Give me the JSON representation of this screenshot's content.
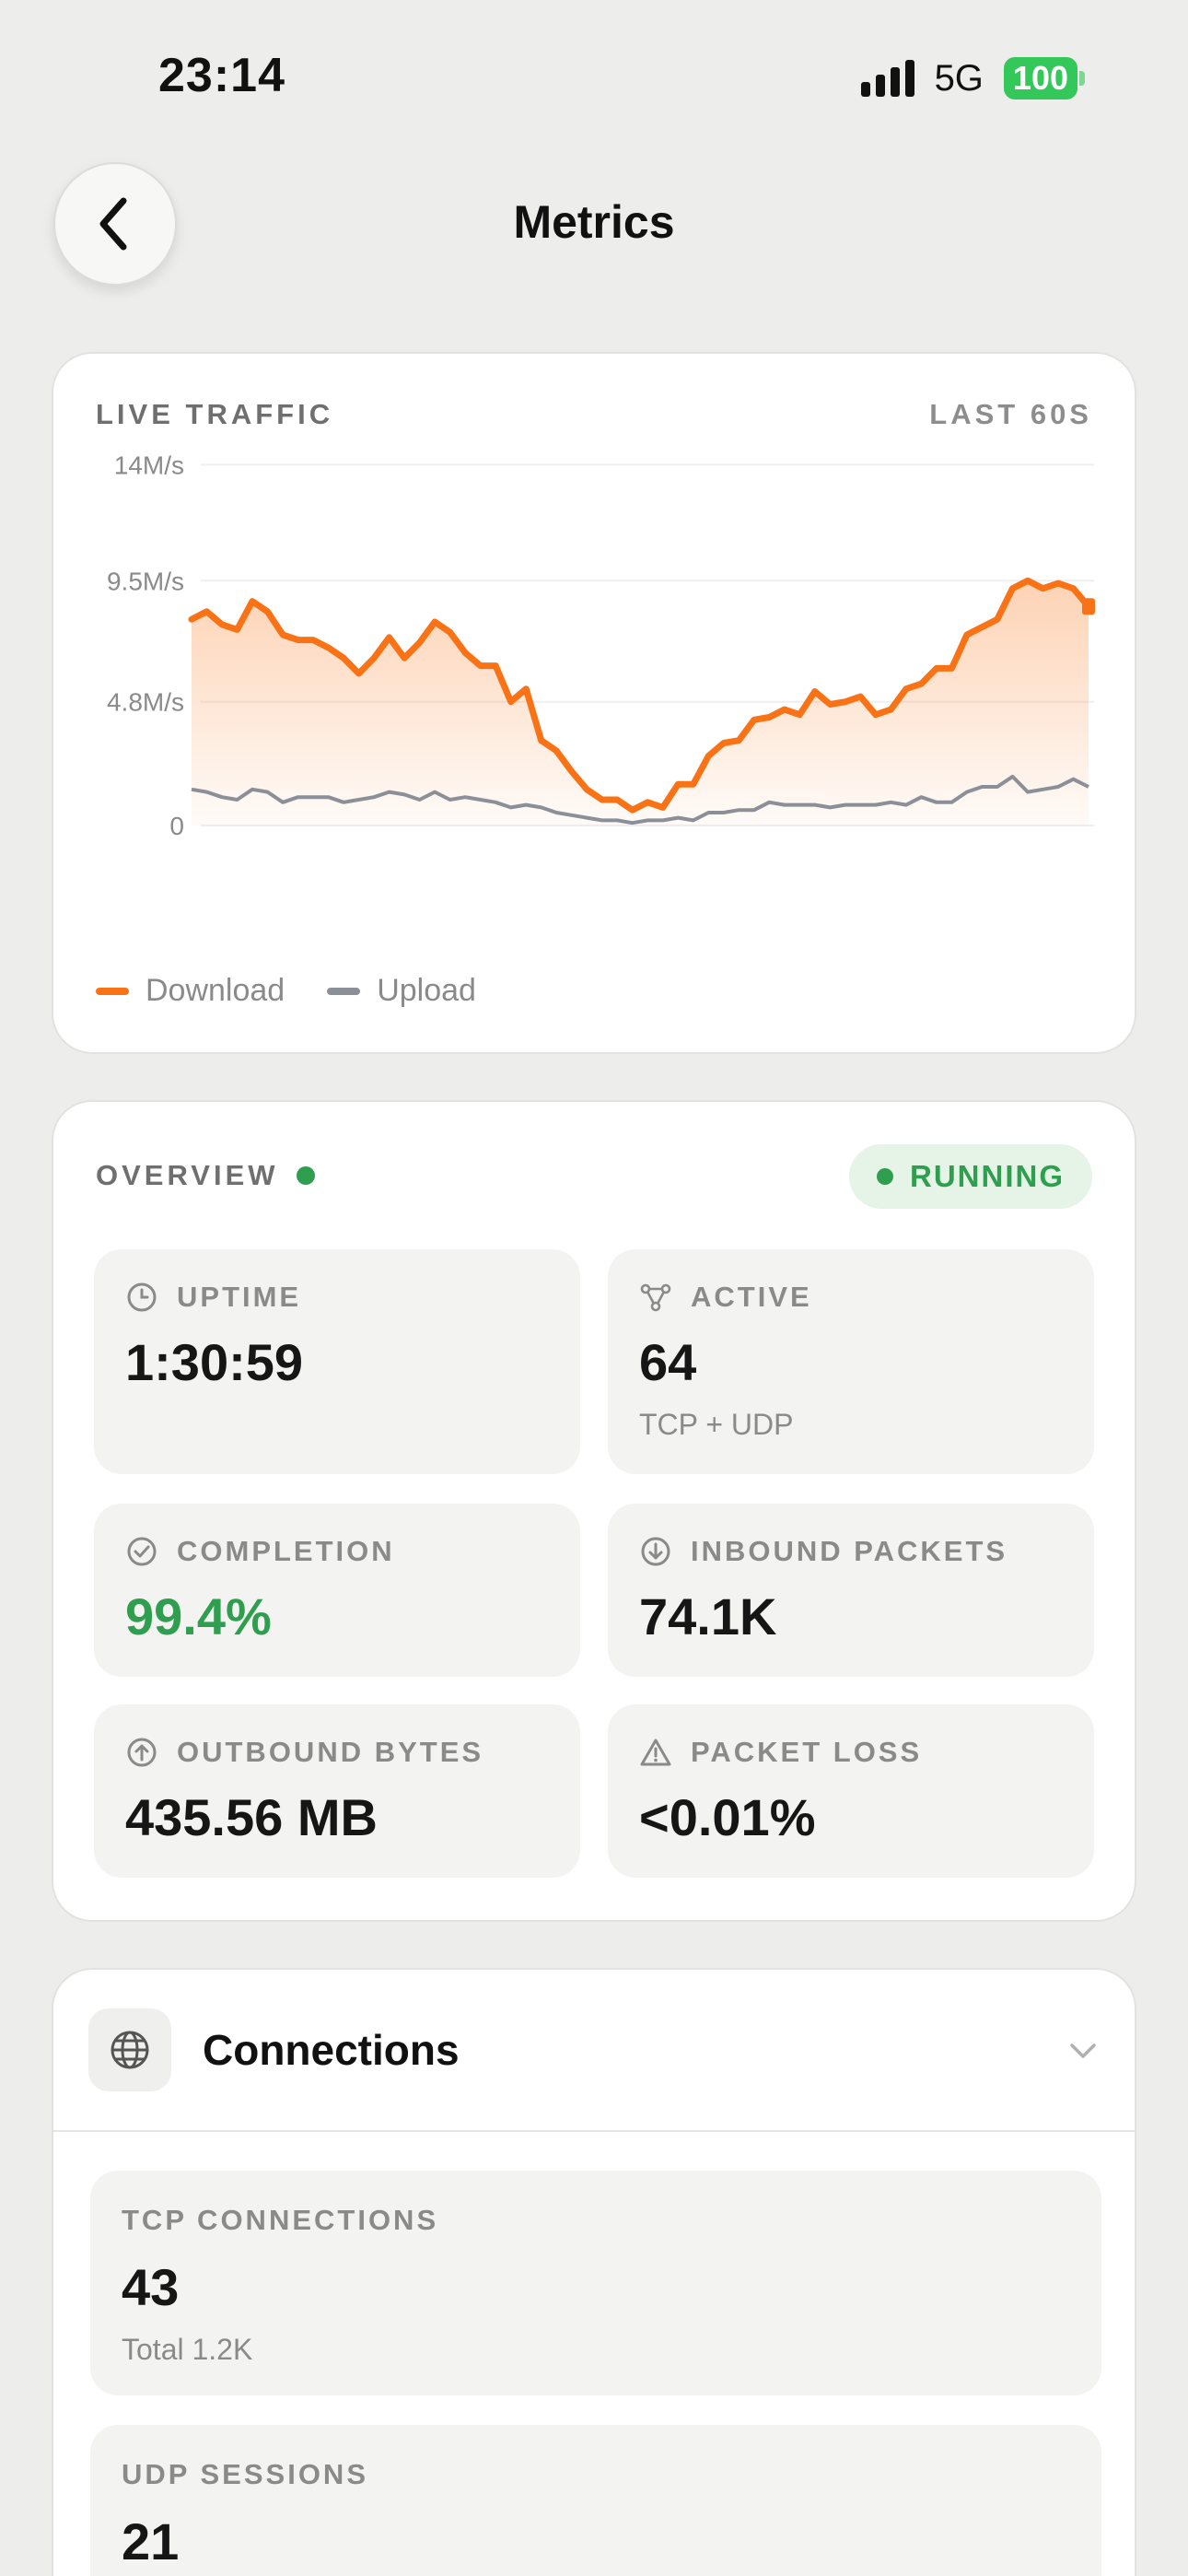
{
  "status_bar": {
    "time": "23:14",
    "network": "5G",
    "battery": "100"
  },
  "nav": {
    "title": "Metrics",
    "back_icon": "chevron-left-icon"
  },
  "traffic": {
    "label": "LIVE TRAFFIC",
    "range": "LAST 60S",
    "legend": {
      "download": "Download",
      "upload": "Upload"
    },
    "colors": {
      "download": "#f97316",
      "upload": "#8b8f98"
    },
    "chart_data": {
      "type": "line",
      "yticks": [
        "14M/s",
        "9.5M/s",
        "4.8M/s",
        "0"
      ],
      "ylim": [
        0,
        14.3
      ],
      "x": [
        0,
        1,
        2,
        3,
        4,
        5,
        6,
        7,
        8,
        9,
        10,
        11,
        12,
        13,
        14,
        15,
        16,
        17,
        18,
        19,
        20,
        21,
        22,
        23,
        24,
        25,
        26,
        27,
        28,
        29,
        30,
        31,
        32,
        33,
        34,
        35,
        36,
        37,
        38,
        39,
        40,
        41,
        42,
        43,
        44,
        45,
        46,
        47,
        48,
        49,
        50,
        51,
        52,
        53,
        54,
        55,
        56,
        57,
        58,
        59
      ],
      "series": [
        {
          "name": "Download",
          "values": [
            8.0,
            8.3,
            7.8,
            7.6,
            8.7,
            8.3,
            7.4,
            7.2,
            7.2,
            6.9,
            6.5,
            5.9,
            6.5,
            7.3,
            6.5,
            7.1,
            7.9,
            7.5,
            6.7,
            6.2,
            6.2,
            4.8,
            5.3,
            3.3,
            2.9,
            2.1,
            1.4,
            1.0,
            1.0,
            0.6,
            0.9,
            0.7,
            1.6,
            1.6,
            2.7,
            3.2,
            3.3,
            4.1,
            4.2,
            4.5,
            4.3,
            5.2,
            4.7,
            4.8,
            5.0,
            4.3,
            4.5,
            5.3,
            5.5,
            6.1,
            6.1,
            7.4,
            7.7,
            8.0,
            9.2,
            9.5,
            9.2,
            9.4,
            9.2,
            8.5
          ]
        },
        {
          "name": "Upload",
          "values": [
            1.4,
            1.3,
            1.1,
            1.0,
            1.4,
            1.3,
            0.9,
            1.1,
            1.1,
            1.1,
            0.9,
            1.0,
            1.1,
            1.3,
            1.2,
            1.0,
            1.3,
            1.0,
            1.1,
            1.0,
            0.9,
            0.7,
            0.8,
            0.7,
            0.5,
            0.4,
            0.3,
            0.2,
            0.2,
            0.1,
            0.2,
            0.2,
            0.3,
            0.2,
            0.5,
            0.5,
            0.6,
            0.6,
            0.9,
            0.8,
            0.8,
            0.8,
            0.7,
            0.8,
            0.8,
            0.8,
            0.9,
            0.8,
            1.1,
            0.9,
            0.9,
            1.3,
            1.5,
            1.5,
            1.9,
            1.3,
            1.4,
            1.5,
            1.8,
            1.5
          ]
        }
      ]
    }
  },
  "overview": {
    "label": "OVERVIEW",
    "status": "RUNNING",
    "status_color": "#2f9e4f",
    "tiles": [
      {
        "label": "UPTIME",
        "value": "1:30:59",
        "sub": "",
        "icon": "clock-icon",
        "accent": ""
      },
      {
        "label": "ACTIVE",
        "value": "64",
        "sub": "TCP + UDP",
        "icon": "network-nodes-icon",
        "accent": ""
      },
      {
        "label": "COMPLETION",
        "value": "99.4%",
        "sub": "",
        "icon": "check-circle-icon",
        "accent": "#2f9e4f"
      },
      {
        "label": "INBOUND PACKETS",
        "value": "74.1K",
        "sub": "",
        "icon": "arrow-down-circle-icon",
        "accent": ""
      },
      {
        "label": "OUTBOUND BYTES",
        "value": "435.56 MB",
        "sub": "",
        "icon": "arrow-up-circle-icon",
        "accent": ""
      },
      {
        "label": "PACKET LOSS",
        "value": "<0.01%",
        "sub": "",
        "icon": "warning-triangle-icon",
        "accent": ""
      }
    ]
  },
  "connections": {
    "title": "Connections",
    "icon": "globe-icon",
    "tcp": {
      "label": "TCP CONNECTIONS",
      "value": "43",
      "sub": "Total 1.2K"
    },
    "udp": {
      "label": "UDP SESSIONS",
      "value": "21"
    }
  }
}
